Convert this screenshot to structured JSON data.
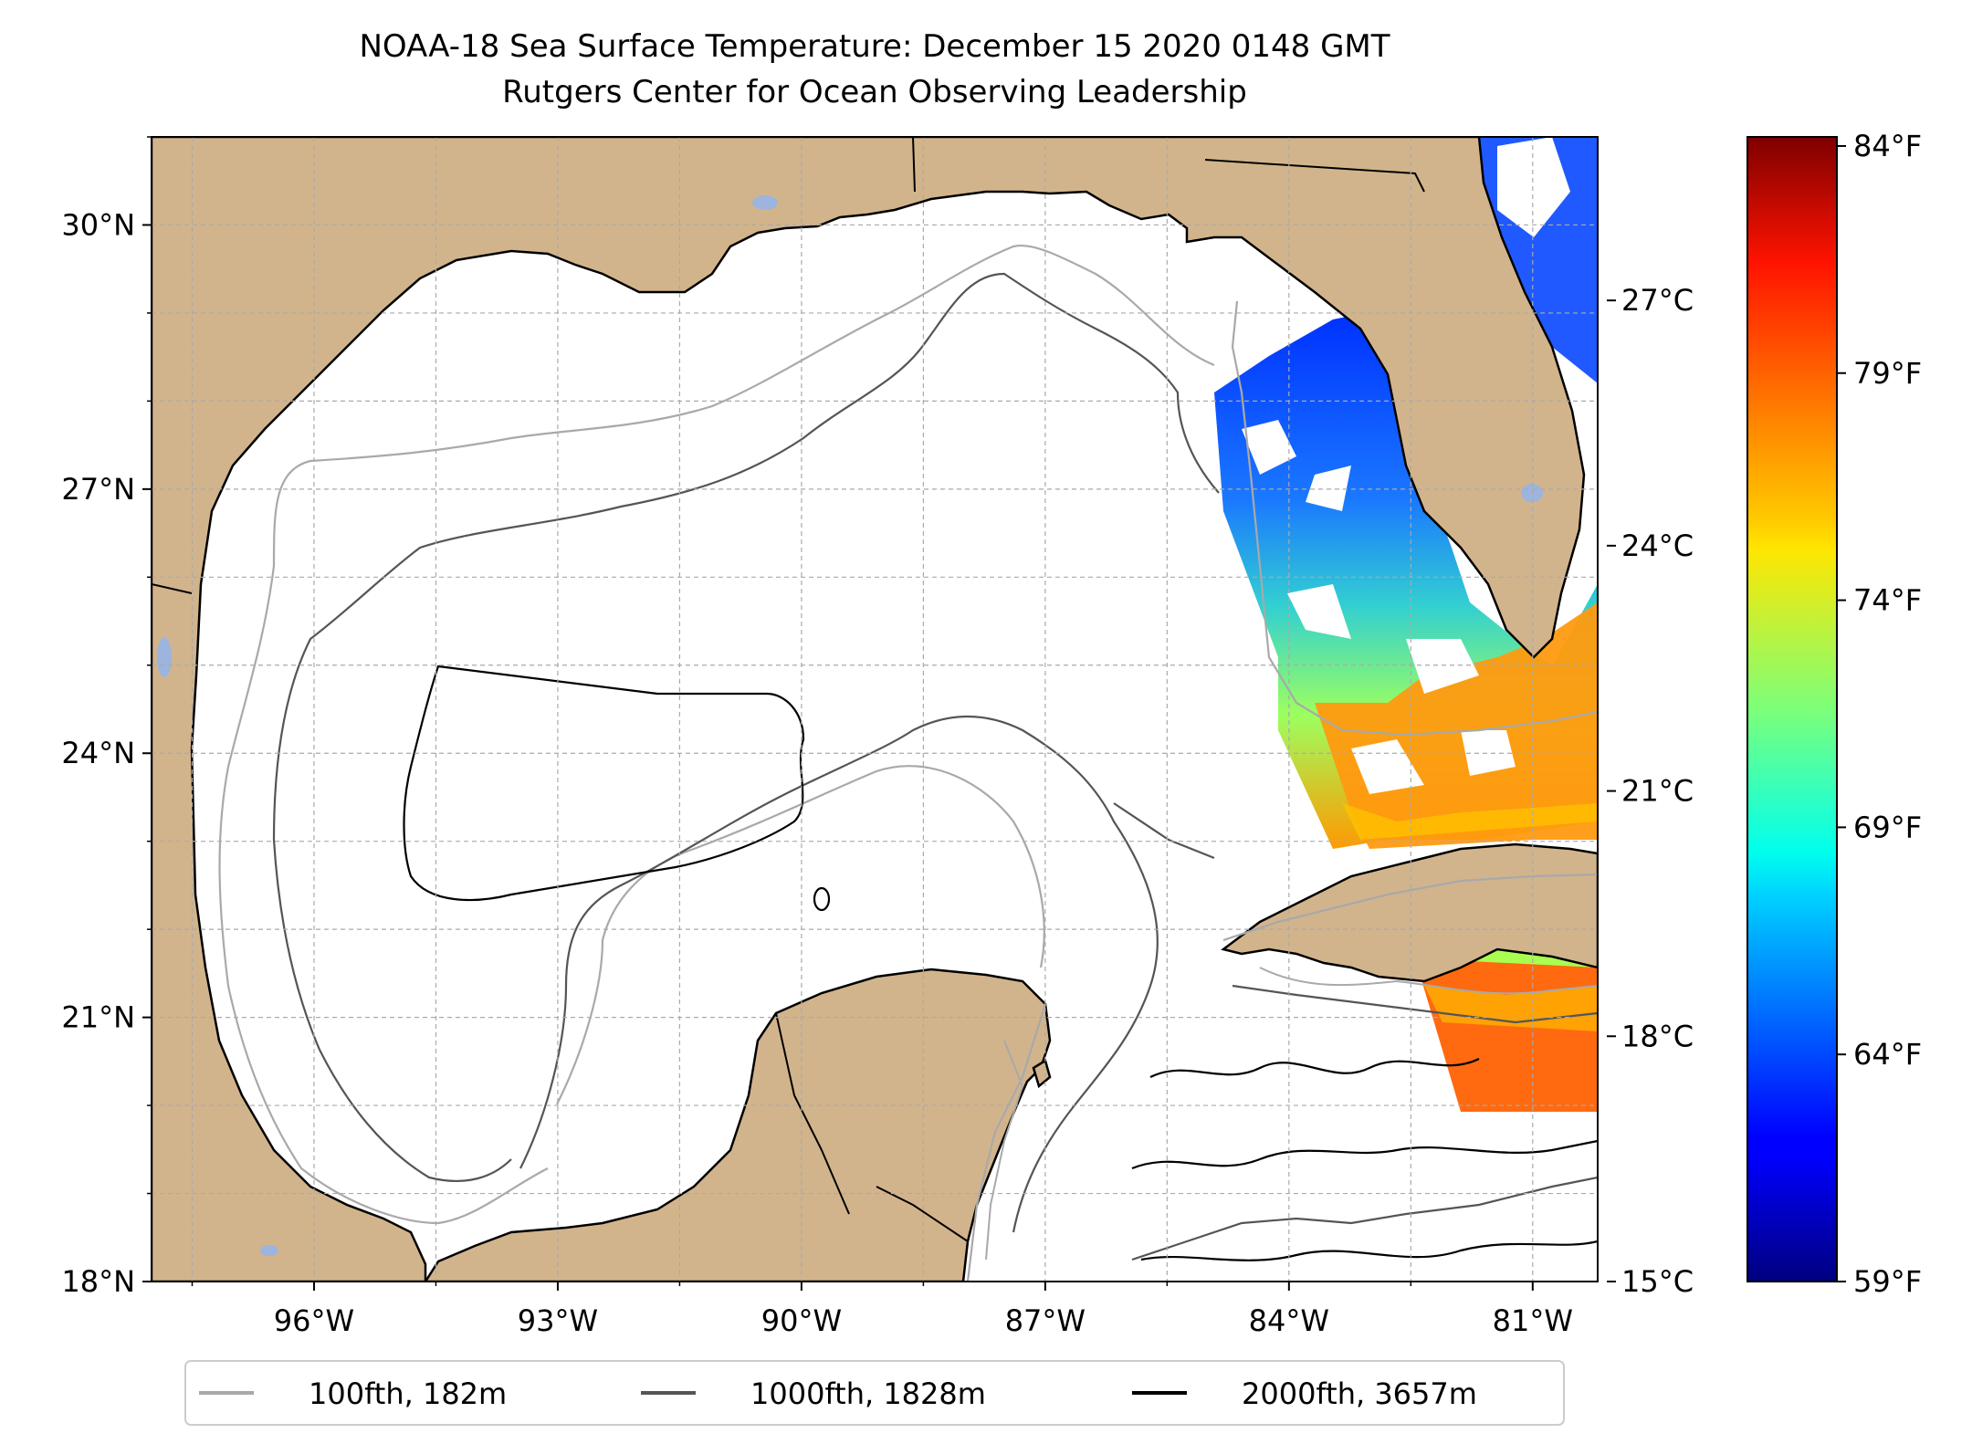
{
  "title": {
    "line1": "NOAA-18 Sea Surface Temperature: December 15 2020 0148 GMT",
    "line2": "Rutgers Center for Ocean Observing Leadership"
  },
  "map": {
    "lon_range": [
      -98.0,
      -80.2
    ],
    "lat_range": [
      18.0,
      31.0
    ],
    "xticks": [
      {
        "value": -96,
        "label": "96°W"
      },
      {
        "value": -93,
        "label": "93°W"
      },
      {
        "value": -90,
        "label": "90°W"
      },
      {
        "value": -87,
        "label": "87°W"
      },
      {
        "value": -84,
        "label": "84°W"
      },
      {
        "value": -81,
        "label": "81°W"
      }
    ],
    "yticks": [
      {
        "value": 18,
        "label": "18°N"
      },
      {
        "value": 21,
        "label": "21°N"
      },
      {
        "value": 24,
        "label": "24°N"
      },
      {
        "value": 27,
        "label": "27°N"
      },
      {
        "value": 30,
        "label": "30°N"
      }
    ],
    "gridlines": true,
    "land_color": "#d2b48c",
    "lake_color": "#9cb4de",
    "sea_color": "#ffffff"
  },
  "colorbar": {
    "colormap": "jet",
    "range_celsius": [
      15,
      29
    ],
    "celsius_ticks": [
      {
        "value": 15,
        "label": "15°C"
      },
      {
        "value": 18,
        "label": "18°C"
      },
      {
        "value": 21,
        "label": "21°C"
      },
      {
        "value": 24,
        "label": "24°C"
      },
      {
        "value": 27,
        "label": "27°C"
      }
    ],
    "fahrenheit_ticks": [
      {
        "value": 59,
        "label": "59°F"
      },
      {
        "value": 64,
        "label": "64°F"
      },
      {
        "value": 69,
        "label": "69°F"
      },
      {
        "value": 74,
        "label": "74°F"
      },
      {
        "value": 79,
        "label": "79°F"
      },
      {
        "value": 84,
        "label": "84°F"
      }
    ]
  },
  "legend": {
    "placement": "bottom-center",
    "items": [
      {
        "label": "100fth, 182m",
        "color": "#a9a9a9"
      },
      {
        "label": "1000fth, 1828m",
        "color": "#555555"
      },
      {
        "label": "2000fth, 3657m",
        "color": "#000000"
      }
    ]
  }
}
